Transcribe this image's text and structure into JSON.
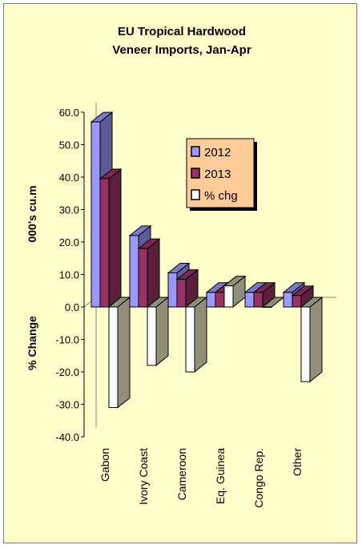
{
  "chart_data": {
    "type": "bar",
    "title_lines": [
      "EU Tropical Hardwood",
      "Veneer Imports, Jan-Apr"
    ],
    "ylabel_top": "000's cu.m",
    "ylabel_bottom": "% Change",
    "ylim": [
      -40,
      60
    ],
    "yticks": [
      "60.0",
      "50.0",
      "40.0",
      "30.0",
      "20.0",
      "10.0",
      "0.0",
      "-10.0",
      "-20.0",
      "-30.0",
      "-40.0"
    ],
    "categories": [
      "Gabon",
      "Ivory Coast",
      "Cameroon",
      "Eq. Guinea",
      "Congo Rep.",
      "Other"
    ],
    "series": [
      {
        "name": "2012",
        "values": [
          57,
          22,
          10.5,
          4.5,
          4.5,
          4.5
        ]
      },
      {
        "name": "2013",
        "values": [
          39.5,
          18,
          8.5,
          4.5,
          4.5,
          3.5
        ]
      },
      {
        "name": "% chg",
        "values": [
          -31,
          -18,
          -20,
          6.5,
          0,
          -23
        ]
      }
    ],
    "colors": {
      "2012": "#9999ff",
      "2013": "#993366",
      "% chg": "#ffffff",
      "shade": "#8f8f7a",
      "background": "#ffffcc",
      "legend_bg": "#ffcc99"
    },
    "legend_position": "upper-right",
    "grid": false
  }
}
